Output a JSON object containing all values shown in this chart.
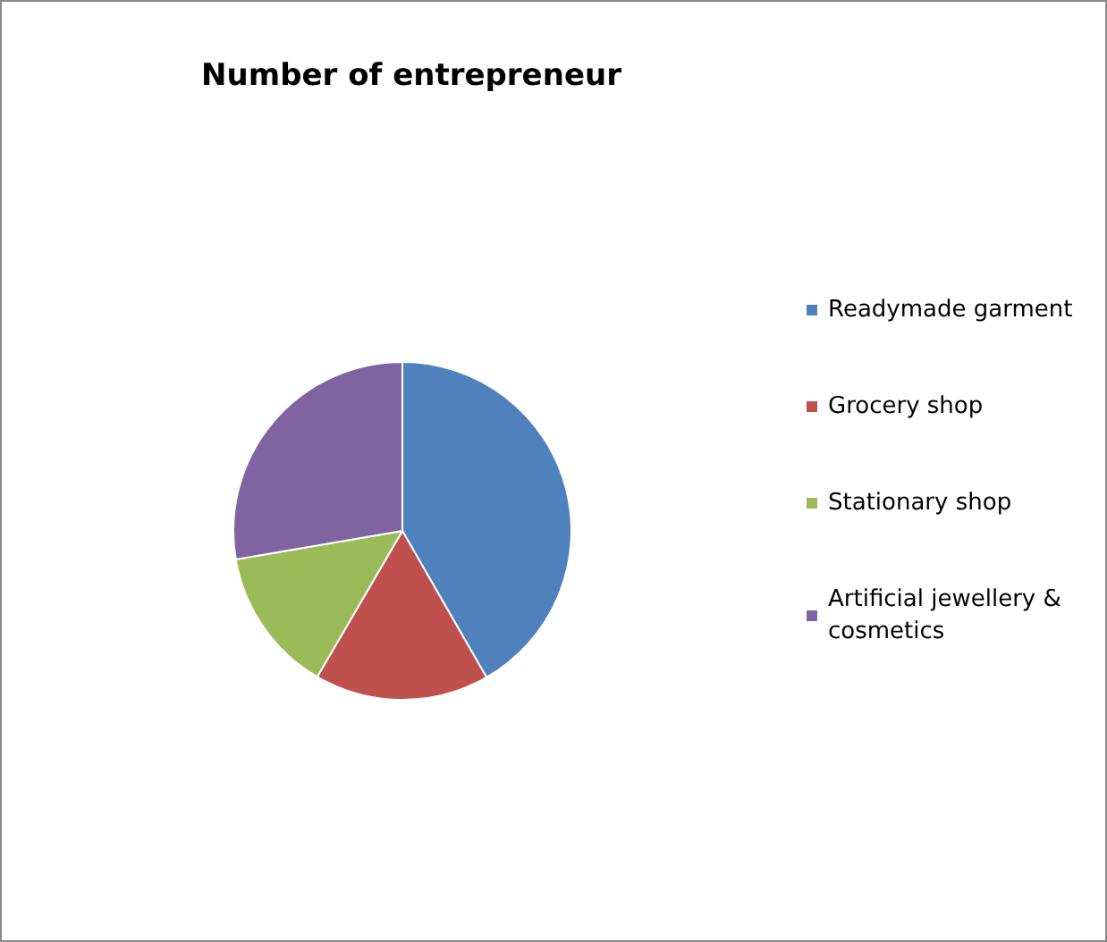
{
  "chart_data": {
    "type": "pie",
    "title": "Number of entrepreneur",
    "categories": [
      "Readymade garment",
      "Grocery shop",
      "Stationary shop",
      "Artificial jewellery & cosmetics"
    ],
    "values": [
      41.7,
      16.7,
      13.9,
      27.7
    ],
    "colors": [
      "#4f81bd",
      "#c0504d",
      "#9bbb59",
      "#8064a2"
    ],
    "legend": "right"
  }
}
